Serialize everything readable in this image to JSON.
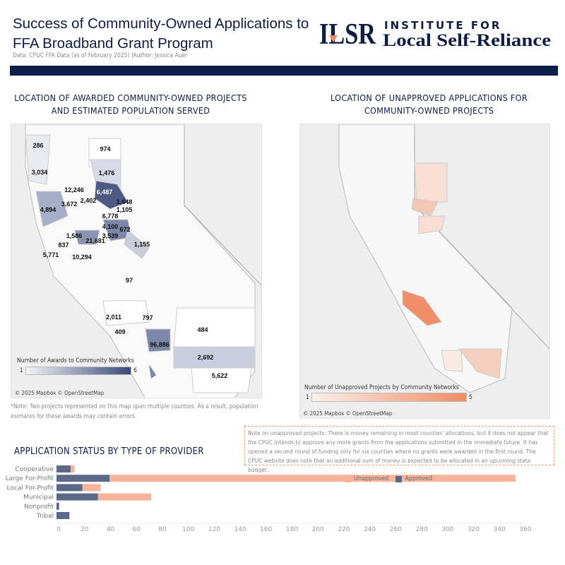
{
  "header": {
    "title": "Success of Community-Owned Applications to FFA Broadband Grant Program",
    "subtitle": "Data: CPUC FFA Data (as of February 2025) |Author: Jessica Auer",
    "logo_text": "ILSR INSTITUTE FOR Local Self-Reliance"
  },
  "map_awarded": {
    "title": "LOCATION OF AWARDED COMMUNITY-OWNED PROJECTS AND ESTIMATED POPULATION SERVED",
    "labels": [
      "286",
      "974",
      "3,034",
      "1,476",
      "12,246",
      "6,487",
      "3,672",
      "2,402",
      "1,648",
      "4,894",
      "1,105",
      "6,778",
      "4,100",
      "672",
      "3,539",
      "1,586",
      "21,681",
      "837",
      "1,155",
      "5,771",
      "10,294",
      "97",
      "2,011",
      "797",
      "409",
      "484",
      "96,886",
      "2,692",
      "5,622"
    ],
    "legend_title": "Number of Awards to Community Networks",
    "legend_min": "1",
    "legend_max": "6",
    "color_low": "#f2f3f7",
    "color_high": "#3a4a78",
    "credit": "© 2025 Mapbox © OpenStreetMap",
    "note": "*Note: Two projects represented on this map span multiple counties. As a result, population esimates for these awards may contain errors."
  },
  "map_unapproved": {
    "title": "LOCATION OF UNAPPROVED APPLICATIONS FOR COMMUNITY-OWNED PROJECTS",
    "legend_title": "Number of Unapproved Projects by Community Networks",
    "legend_min": "1",
    "legend_max": "5",
    "color_low": "#fbf1ec",
    "color_high": "#f08a62",
    "credit": "© 2025 Mapbox © OpenStreetMap"
  },
  "note_box": "Note on unapproved projects: There is money remaining in most counties' allocations, but it does not appear that the CPUC intends to approve any more grants from the applications submitted in the immediate future. It has opened a second round of funding only for six counties where no grants were awarded in the first round. The CPUC website does note that an additional sum of money is expected to be allocated in an upcoming state budget.",
  "chart_data": {
    "type": "bar",
    "orientation": "horizontal",
    "stacked": true,
    "title": "APPLICATION STATUS BY TYPE OF PROVIDER",
    "categories": [
      "Cooperative",
      "Large For-Profit",
      "Local For-Profit",
      "Municipal",
      "Nonprofit",
      "Tribal"
    ],
    "series": [
      {
        "name": "Approved",
        "color": "#5b6888",
        "values": [
          11,
          41,
          20,
          32,
          2,
          10
        ]
      },
      {
        "name": "Unapproved",
        "color": "#f8b49a",
        "values": [
          3,
          313,
          14,
          41,
          0,
          0
        ]
      }
    ],
    "xlim": [
      0,
      360
    ],
    "xticks": [
      "0",
      "20",
      "40",
      "60",
      "80",
      "100",
      "120",
      "140",
      "160",
      "180",
      "200",
      "220",
      "240",
      "260",
      "280",
      "300",
      "320",
      "340",
      "360"
    ],
    "legend": [
      "Unapproved",
      "Approved"
    ],
    "legend_placement": "right",
    "grid": false
  }
}
